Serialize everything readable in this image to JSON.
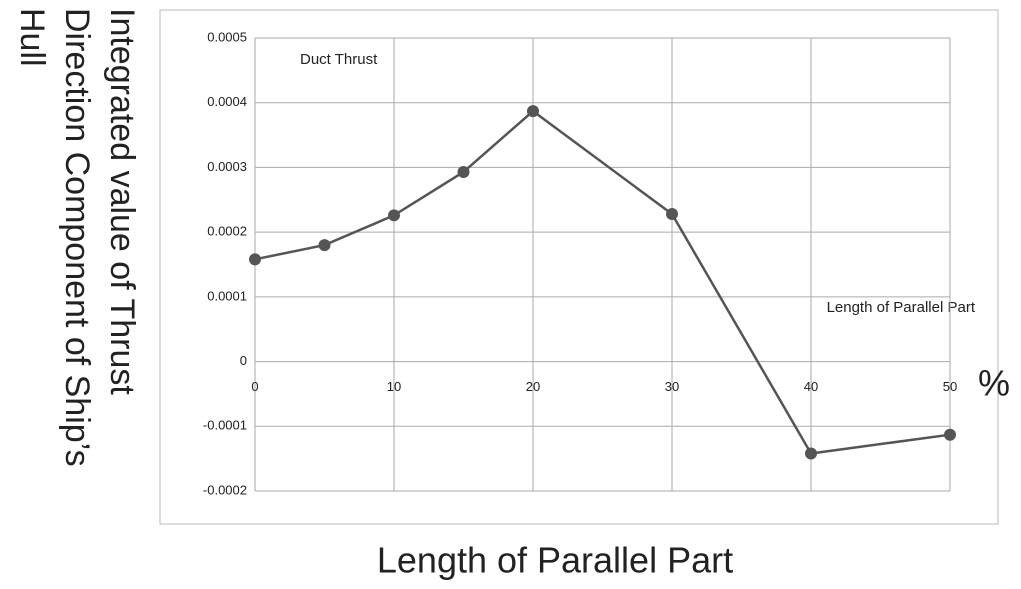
{
  "chart_data": {
    "type": "line",
    "ylabel": [
      "Integrated value of Thrust",
      "Direction Component of Ship’s",
      "Hull"
    ],
    "xlabel": "Length of Parallel Part",
    "annotations": [
      "Duct Thrust",
      "Length of Parallel Part",
      "%"
    ],
    "x": [
      0,
      5,
      10,
      15,
      20,
      30,
      40,
      50
    ],
    "series": [
      {
        "color": "#555555",
        "values": [
          0.000158,
          0.00018,
          0.000226,
          0.000293,
          0.000387,
          0.000228,
          -0.000142,
          -0.000113
        ]
      }
    ],
    "xlim": [
      0,
      50
    ],
    "xticks": [
      0,
      10,
      20,
      30,
      40,
      50
    ],
    "ylim": [
      -0.0002,
      0.0005
    ],
    "yticks": [
      -0.0002,
      -0.0001,
      0,
      0.0001,
      0.0002,
      0.0003,
      0.0004,
      0.0005
    ],
    "grid": true
  }
}
